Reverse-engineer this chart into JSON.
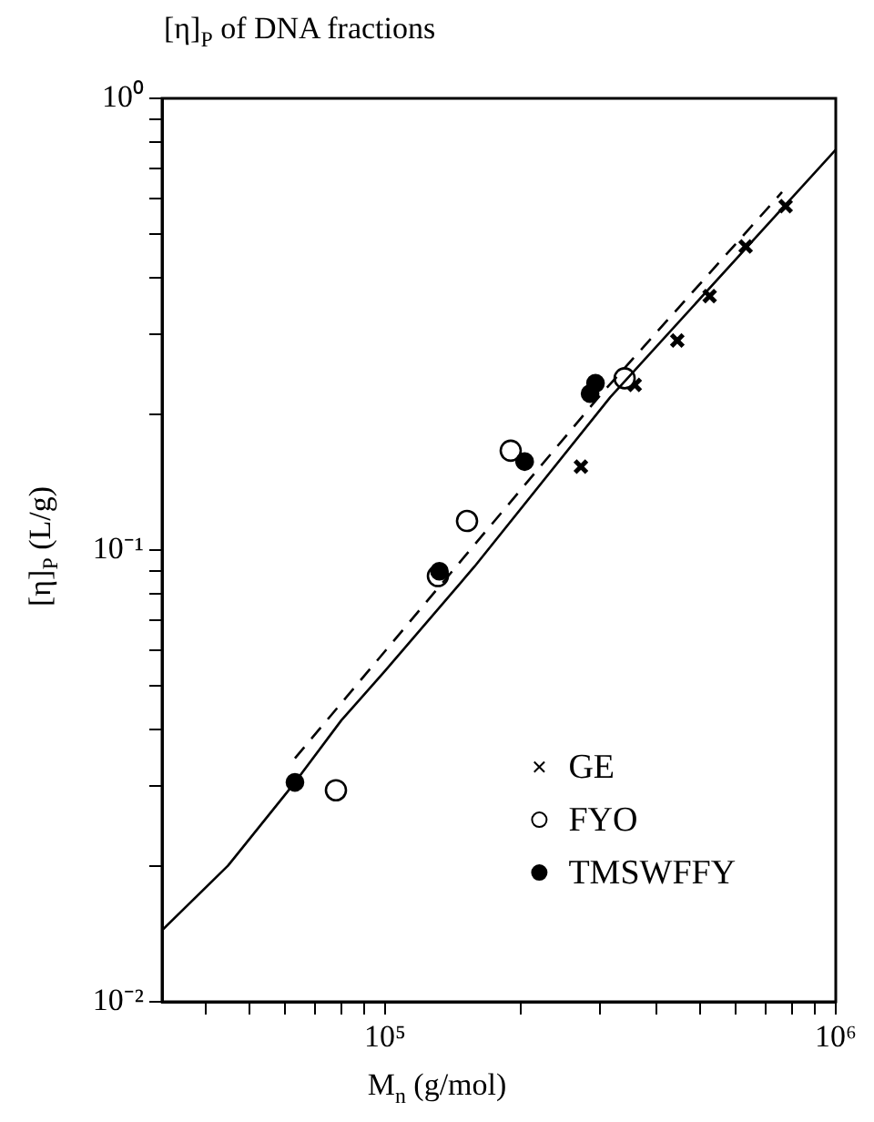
{
  "chart_data": {
    "type": "scatter",
    "title": "[η]$_{P}$  of DNA fractions",
    "xlabel": "M$_{n}$ (g/mol)",
    "ylabel": "[η]$_{P}$ (L/g)",
    "log": "xy",
    "grid": false,
    "legend": "bottom right",
    "xlim": [
      32000,
      1000000
    ],
    "xticks": [
      {
        "value": 40000,
        "label": null
      },
      {
        "value": 50000,
        "label": null
      },
      {
        "value": 60000,
        "label": null
      },
      {
        "value": 70000,
        "label": null
      },
      {
        "value": 80000,
        "label": null
      },
      {
        "value": 90000,
        "label": null
      },
      {
        "value": 100000,
        "label": "10⁵"
      },
      {
        "value": 200000,
        "label": null
      },
      {
        "value": 300000,
        "label": null
      },
      {
        "value": 400000,
        "label": null
      },
      {
        "value": 500000,
        "label": null
      },
      {
        "value": 600000,
        "label": null
      },
      {
        "value": 700000,
        "label": null
      },
      {
        "value": 800000,
        "label": null
      },
      {
        "value": 900000,
        "label": null
      },
      {
        "value": 1000000,
        "label": "10⁶"
      }
    ],
    "ylim": [
      0.01,
      1
    ],
    "yticks": [
      {
        "value": 0.01,
        "label": "10⁻²"
      },
      {
        "value": 0.02,
        "label": null
      },
      {
        "value": 0.03,
        "label": null
      },
      {
        "value": 0.04,
        "label": null
      },
      {
        "value": 0.05,
        "label": null
      },
      {
        "value": 0.06,
        "label": null
      },
      {
        "value": 0.07,
        "label": null
      },
      {
        "value": 0.08,
        "label": null
      },
      {
        "value": 0.09,
        "label": null
      },
      {
        "value": 0.1,
        "label": "10⁻¹"
      },
      {
        "value": 0.2,
        "label": null
      },
      {
        "value": 0.3,
        "label": null
      },
      {
        "value": 0.4,
        "label": null
      },
      {
        "value": 0.5,
        "label": null
      },
      {
        "value": 0.6,
        "label": null
      },
      {
        "value": 0.7,
        "label": null
      },
      {
        "value": 0.8,
        "label": null
      },
      {
        "value": 0.9,
        "label": null
      },
      {
        "value": 1,
        "label": "10⁰"
      }
    ],
    "series": [
      {
        "name": "GE",
        "marker": "cross",
        "color": "#000000",
        "x": [
          774000,
          631000,
          525000,
          445000,
          358000,
          272000
        ],
        "values": [
          0.577,
          0.47,
          0.365,
          0.291,
          0.232,
          0.153
        ]
      },
      {
        "name": "FYO",
        "marker": "circle",
        "color": "#ffffff",
        "x": [
          340000,
          190000,
          152000,
          131000,
          77800
        ],
        "values": [
          0.24,
          0.166,
          0.116,
          0.0876,
          0.0294
        ]
      },
      {
        "name": "TMSWFFY",
        "marker": "circle",
        "color": "#000000",
        "x": [
          293000,
          285000,
          204000,
          132000,
          63100
        ],
        "values": [
          0.234,
          0.222,
          0.157,
          0.0898,
          0.0306
        ]
      },
      {
        "type": "line",
        "line_style": "solid",
        "color": "#000000",
        "x": [
          32000,
          44800,
          63100,
          80000,
          100000,
          158000,
          316000,
          1000000
        ],
        "values": [
          0.0144,
          0.02,
          0.0306,
          0.042,
          0.054,
          0.092,
          0.218,
          0.77
        ]
      },
      {
        "type": "line",
        "line_style": "dashed",
        "color": "#000000",
        "x": [
          63100,
          300000,
          760000
        ],
        "values": [
          0.0346,
          0.22,
          0.62
        ]
      }
    ]
  }
}
